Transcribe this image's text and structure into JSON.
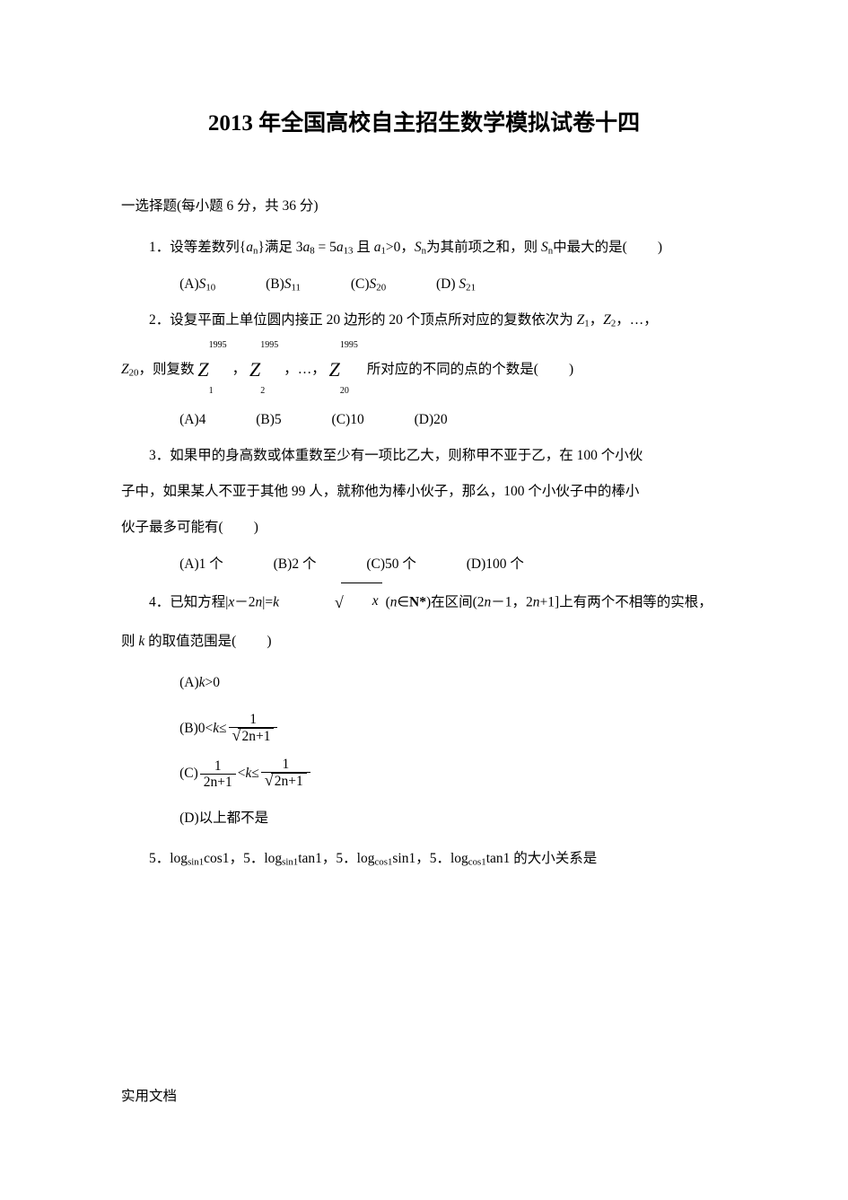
{
  "title": "2013 年全国高校自主招生数学模拟试卷十四",
  "section": "一选择题(每小题 6 分，共 36 分)",
  "q1": {
    "stem_a": "1．设等差数列{",
    "stem_b": "}满足 3",
    "stem_c": " = 5",
    "stem_d": " 且 ",
    "stem_e": ">0，",
    "stem_f": "为其前项之和，则 ",
    "stem_g": "中最大的是(",
    "stem_h": ")",
    "a_n": "a",
    "S_n": "S",
    "optA": "S",
    "optA_sub": "10",
    "optB": "S",
    "optB_sub": "11",
    "optC": "S",
    "optC_sub": "20",
    "optD": "S",
    "optD_sub": "21",
    "A": "(A)",
    "B": "(B)",
    "C": "(C)",
    "D": "(D) "
  },
  "q2": {
    "line1_a": "2．设复平面上单位圆内接正 20 边形的 20 个顶点所对应的复数依次为 ",
    "line1_b": "，",
    "line1_c": "，…，",
    "Z": "Z",
    "sub1": "1",
    "sub2": "2",
    "sub20": "20",
    "line2_a": "，则复数 ",
    "line2_sep": "，",
    "line2_dots": "，…，",
    "line2_b": " 所对应的不同的点的个数是(",
    "line2_c": ")",
    "exp": "1995",
    "optA": "4",
    "optB": "5",
    "optC": "10",
    "optD": "20",
    "A": "(A)",
    "B": "(B)",
    "C": "(C)",
    "D": "(D)"
  },
  "q3": {
    "l1": "3．如果甲的身高数或体重数至少有一项比乙大，则称甲不亚于乙，在 100 个小伙",
    "l2": "子中，如果某人不亚于其他 99 人，就称他为棒小伙子，那么，100 个小伙子中的棒小",
    "l3": "伙子最多可能有(",
    "l3b": ")",
    "optA": "1 个",
    "optB": "2 个",
    "optC": "50 个",
    "optD": "100 个",
    "A": "(A)",
    "B": "(B)",
    "C": "(C)",
    "D": "(D)"
  },
  "q4": {
    "l1a": "4．已知方程|",
    "x": "x",
    "l1b": "－2",
    "n": "n",
    "l1c": "|=",
    "k": "k",
    "l1d": " (",
    "l1e": "∈",
    "Nstar": "N*",
    "l1f": ")在区间(2",
    "l1g": "－1，2",
    "l1h": "+1]上有两个不相等的实根，",
    "l2a": "则 ",
    "l2b": " 的取值范围是(",
    "l2c": ")",
    "A": "(A)",
    "B": "(B)",
    "C": "(C)",
    "D": "(D)",
    "optA": ">0",
    "optB_a": "0<",
    "optB_b": "≤",
    "num1": "1",
    "den_2n1": "2n+1",
    "optC_a": "<",
    "optC_b": "≤",
    "optD": "以上都不是"
  },
  "q5": {
    "l1": "5．log",
    "sin1": "sin1",
    "cos1": "cos1",
    "tan1": "tan1",
    "sep": "，",
    "tail": " 的大小关系是"
  },
  "footer": "实用文档"
}
